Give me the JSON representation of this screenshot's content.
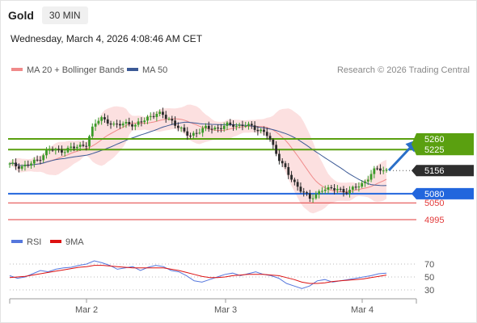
{
  "header": {
    "title": "Gold",
    "timeframe": "30 MIN"
  },
  "timestamp": "Wednesday, March 4, 2026 4:08:46 AM CET",
  "legend": {
    "ma20": {
      "label": "MA 20 + Bollinger Bands",
      "color": "#f08a8a"
    },
    "ma50": {
      "label": "MA 50",
      "color": "#3c5a96"
    }
  },
  "copyright": "Research © 2026 Trading Central",
  "rsi_legend": {
    "rsi": {
      "label": "RSI",
      "color": "#5577dd"
    },
    "ma9": {
      "label": "9MA",
      "color": "#dd1111"
    }
  },
  "chart_data": {
    "type": "candlestick",
    "x_labels": [
      "Mar 2",
      "Mar 3",
      "Mar 4"
    ],
    "price_ylim": [
      4980,
      5350
    ],
    "levels": [
      {
        "value": 5260,
        "label": "5260",
        "kind": "resistance",
        "color": "#5aa010"
      },
      {
        "value": 5225,
        "label": "5225",
        "kind": "resistance",
        "color": "#5aa010"
      },
      {
        "value": 5156,
        "label": "5156",
        "kind": "current",
        "color": "#333333"
      },
      {
        "value": 5080,
        "label": "5080",
        "kind": "pivot",
        "color": "#2266dd"
      },
      {
        "value": 5050,
        "label": "5050",
        "kind": "support",
        "color": "#e23a3a"
      },
      {
        "value": 4995,
        "label": "4995",
        "kind": "support",
        "color": "#e23a3a"
      }
    ],
    "close_path": [
      5175,
      5172,
      5170,
      5178,
      5190,
      5215,
      5225,
      5220,
      5225,
      5230,
      5235,
      5245,
      5300,
      5330,
      5320,
      5300,
      5310,
      5315,
      5300,
      5320,
      5335,
      5340,
      5338,
      5325,
      5300,
      5280,
      5275,
      5280,
      5295,
      5300,
      5290,
      5305,
      5310,
      5300,
      5305,
      5300,
      5285,
      5270,
      5225,
      5180,
      5140,
      5110,
      5090,
      5060,
      5080,
      5100,
      5090,
      5100,
      5085,
      5090,
      5110,
      5120,
      5150,
      5165,
      5156
    ],
    "rsi": {
      "ylim": [
        20,
        80
      ],
      "ticks": [
        70,
        50,
        30
      ],
      "rsi_values": [
        52,
        48,
        50,
        55,
        60,
        58,
        62,
        64,
        65,
        68,
        70,
        75,
        72,
        68,
        62,
        64,
        66,
        60,
        65,
        68,
        66,
        60,
        58,
        52,
        44,
        42,
        46,
        50,
        54,
        56,
        52,
        55,
        58,
        54,
        52,
        48,
        40,
        36,
        32,
        36,
        44,
        46,
        42,
        44,
        46,
        48,
        50,
        52,
        55,
        56
      ],
      "ma9_values": [
        49,
        50,
        51,
        53,
        55,
        57,
        59,
        61,
        63,
        65,
        66,
        68,
        68,
        67,
        66,
        65,
        64,
        64,
        64,
        64,
        64,
        62,
        60,
        57,
        54,
        51,
        49,
        49,
        50,
        52,
        53,
        54,
        54,
        54,
        53,
        52,
        49,
        46,
        42,
        40,
        40,
        41,
        43,
        44,
        45,
        46,
        47,
        49,
        51,
        53
      ]
    }
  }
}
